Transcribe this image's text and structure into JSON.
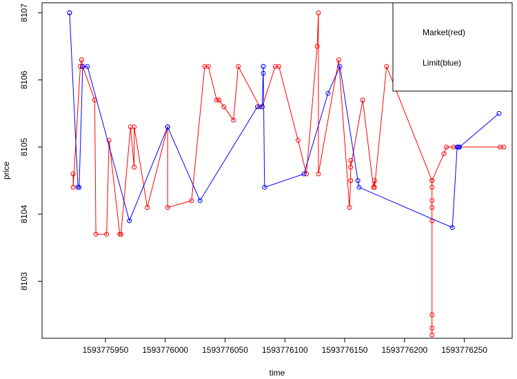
{
  "chart_data": {
    "type": "scatter",
    "xlabel": "time",
    "ylabel": "price",
    "xlim": [
      1593775897,
      1593776290
    ],
    "ylim": [
      8102.15,
      8107.15
    ],
    "x_ticks": [
      {
        "value": 1593775950,
        "label": "1593775950"
      },
      {
        "value": 1593776000,
        "label": "1593776000"
      },
      {
        "value": 1593776050,
        "label": "1593776050"
      },
      {
        "value": 1593776100,
        "label": "1593776100"
      },
      {
        "value": 1593776150,
        "label": "1593776150"
      },
      {
        "value": 1593776200,
        "label": "1593776200"
      },
      {
        "value": 1593776250,
        "label": "1593776250"
      }
    ],
    "y_ticks": [
      {
        "value": 8103,
        "label": "8103"
      },
      {
        "value": 8104,
        "label": "8104"
      },
      {
        "value": 8105,
        "label": "8105"
      },
      {
        "value": 8106,
        "label": "8106"
      },
      {
        "value": 8107,
        "label": "8107"
      }
    ],
    "legend": {
      "position": "top-right",
      "entries": [
        {
          "label": "Market(red)"
        },
        {
          "label": "Limit(blue)"
        }
      ]
    },
    "series": [
      {
        "name": "Market(red)",
        "color": "#ff0000",
        "marker": "open-circle",
        "points": [
          [
            1593775923,
            8104.6
          ],
          [
            1593775923,
            8104.4
          ],
          [
            1593775929,
            8106.2
          ],
          [
            1593775930,
            8106.3
          ],
          [
            1593775931,
            8106.2
          ],
          [
            1593775941,
            8105.7
          ],
          [
            1593775942,
            8103.7
          ],
          [
            1593775951,
            8103.7
          ],
          [
            1593775953,
            8105.1
          ],
          [
            1593775962,
            8103.7
          ],
          [
            1593775963,
            8103.7
          ],
          [
            1593775971,
            8105.3
          ],
          [
            1593775974,
            8104.7
          ],
          [
            1593775974,
            8105.3
          ],
          [
            1593775985,
            8104.1
          ],
          [
            1593776002,
            8105.3
          ],
          [
            1593776002,
            8104.1
          ],
          [
            1593776022,
            8104.2
          ],
          [
            1593776033,
            8106.2
          ],
          [
            1593776036,
            8106.2
          ],
          [
            1593776043,
            8105.7
          ],
          [
            1593776045,
            8105.7
          ],
          [
            1593776049,
            8105.6
          ],
          [
            1593776057,
            8105.4
          ],
          [
            1593776061,
            8106.2
          ],
          [
            1593776079,
            8105.6
          ],
          [
            1593776081,
            8105.6
          ],
          [
            1593776092,
            8106.2
          ],
          [
            1593776095,
            8106.2
          ],
          [
            1593776111,
            8105.1
          ],
          [
            1593776118,
            8104.6
          ],
          [
            1593776127,
            8106.5
          ],
          [
            1593776128,
            8107.0
          ],
          [
            1593776128,
            8104.6
          ],
          [
            1593776145,
            8106.3
          ],
          [
            1593776154,
            8104.1
          ],
          [
            1593776155,
            8104.5
          ],
          [
            1593776155,
            8104.8
          ],
          [
            1593776155,
            8104.7
          ],
          [
            1593776165,
            8105.7
          ],
          [
            1593776174,
            8104.4
          ],
          [
            1593776175,
            8104.5
          ],
          [
            1593776175,
            8104.4
          ],
          [
            1593776185,
            8106.2
          ],
          [
            1593776223,
            8104.5
          ],
          [
            1593776223,
            8104.2
          ],
          [
            1593776223,
            8104.1
          ],
          [
            1593776223,
            8104.4
          ],
          [
            1593776223,
            8103.9
          ],
          [
            1593776223,
            8102.5
          ],
          [
            1593776223,
            8102.3
          ],
          [
            1593776223,
            8102.2
          ],
          [
            1593776223,
            8104.5
          ],
          [
            1593776233,
            8104.9
          ],
          [
            1593776235,
            8105.0
          ],
          [
            1593776241,
            8105.0
          ],
          [
            1593776280,
            8105.0
          ],
          [
            1593776283,
            8105.0
          ]
        ]
      },
      {
        "name": "Limit(blue)",
        "color": "#0000ff",
        "marker": "open-circle",
        "points": [
          [
            1593775920,
            8107.0
          ],
          [
            1593775920,
            8107.0
          ],
          [
            1593775927,
            8104.4
          ],
          [
            1593775928,
            8104.4
          ],
          [
            1593775931,
            8106.2
          ],
          [
            1593775931,
            8106.2
          ],
          [
            1593775935,
            8106.2
          ],
          [
            1593775970,
            8103.9
          ],
          [
            1593776002,
            8105.3
          ],
          [
            1593776002,
            8105.3
          ],
          [
            1593776029,
            8104.2
          ],
          [
            1593776077,
            8105.6
          ],
          [
            1593776081,
            8105.6
          ],
          [
            1593776082,
            8106.2
          ],
          [
            1593776082,
            8106.2
          ],
          [
            1593776082,
            8106.1
          ],
          [
            1593776083,
            8104.4
          ],
          [
            1593776116,
            8104.6
          ],
          [
            1593776136,
            8105.8
          ],
          [
            1593776146,
            8106.2
          ],
          [
            1593776161,
            8104.5
          ],
          [
            1593776162,
            8104.4
          ],
          [
            1593776240,
            8103.8
          ],
          [
            1593776244,
            8105.0
          ],
          [
            1593776245,
            8105.0
          ],
          [
            1593776246,
            8105.0
          ],
          [
            1593776246,
            8105.0
          ],
          [
            1593776279,
            8105.5
          ]
        ]
      }
    ]
  }
}
